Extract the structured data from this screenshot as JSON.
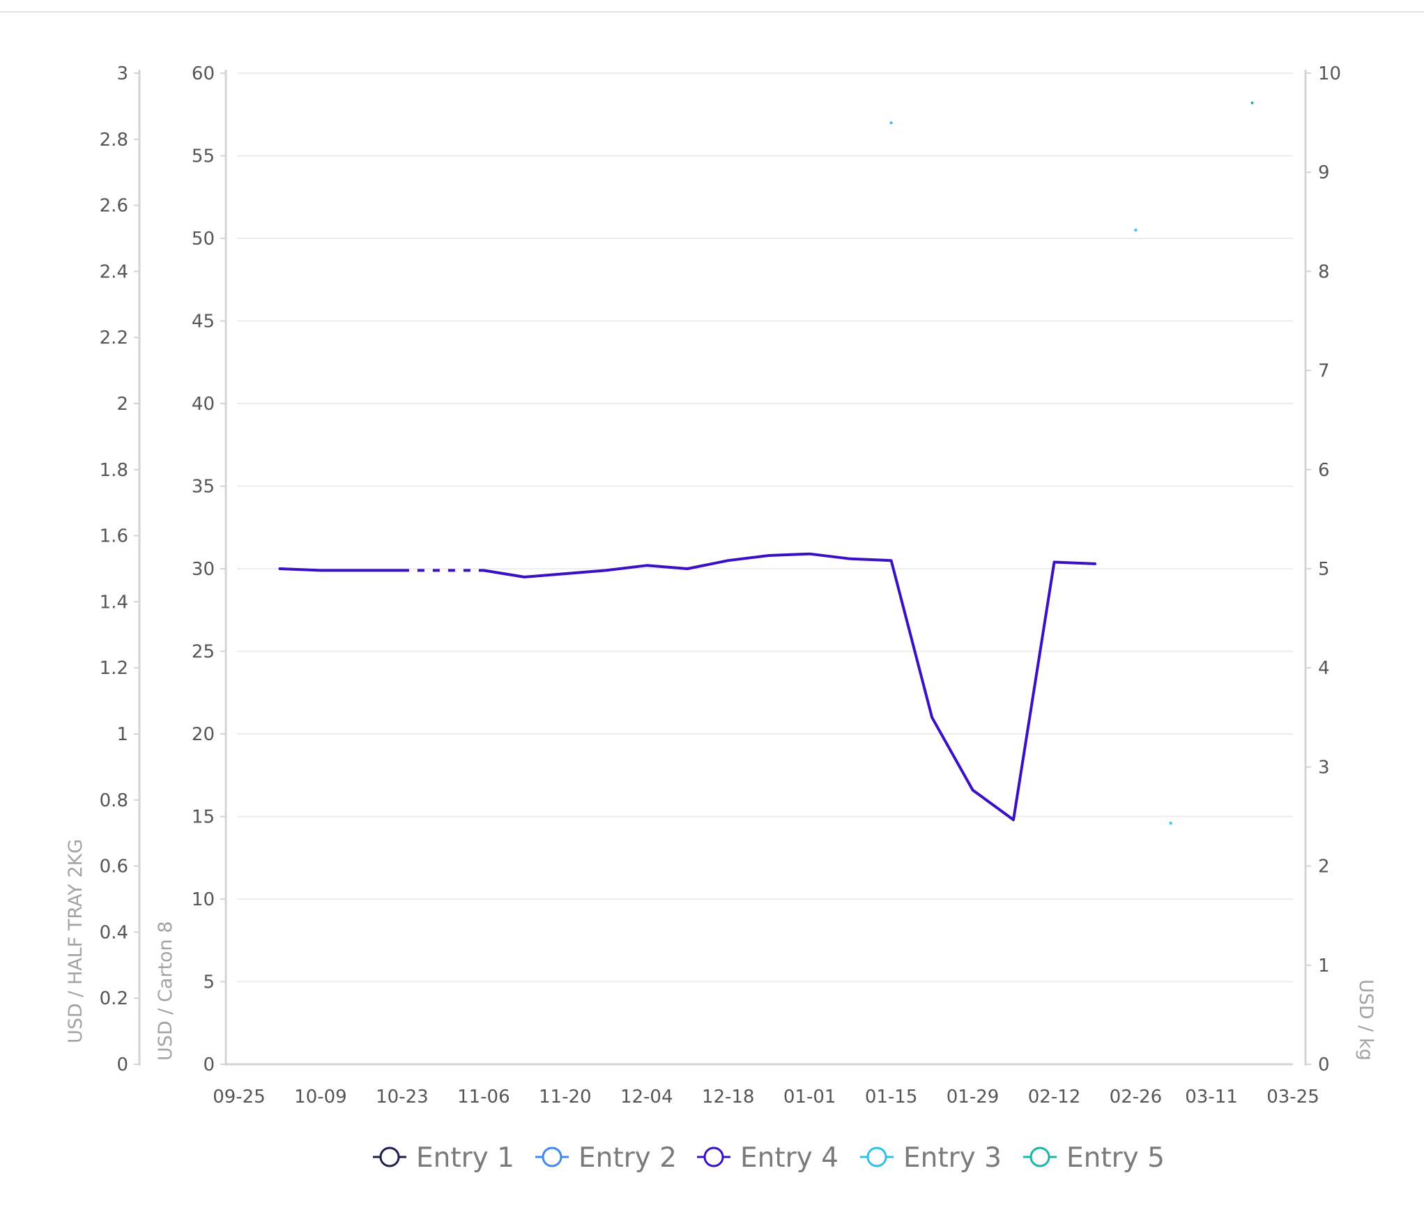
{
  "chart_data": {
    "type": "line",
    "title": "",
    "x_axis": {
      "tick_labels": [
        "09-25",
        "10-09",
        "10-23",
        "11-06",
        "11-20",
        "12-04",
        "12-18",
        "01-01",
        "01-15",
        "01-29",
        "02-12",
        "02-26",
        "03-11",
        "03-25"
      ]
    },
    "y_axes": {
      "left_outer": {
        "label": "USD / HALF TRAY 2KG",
        "range": [
          0,
          3
        ],
        "tick_labels": [
          "0",
          "0.2",
          "0.4",
          "0.6",
          "0.8",
          "1",
          "1.2",
          "1.4",
          "1.6",
          "1.8",
          "2",
          "2.2",
          "2.4",
          "2.6",
          "2.8",
          "3"
        ]
      },
      "left_inner": {
        "label": "USD / Carton 8",
        "range": [
          0,
          60
        ],
        "tick_labels": [
          "0",
          "5",
          "10",
          "15",
          "20",
          "25",
          "30",
          "35",
          "40",
          "45",
          "50",
          "55",
          "60"
        ]
      },
      "right": {
        "label": "USD / kg",
        "range": [
          0,
          10
        ],
        "tick_labels": [
          "0",
          "1",
          "2",
          "3",
          "4",
          "5",
          "6",
          "7",
          "8",
          "9",
          "10"
        ]
      }
    },
    "grid": true,
    "legend_position": "bottom",
    "legend": [
      {
        "label": "Entry 1",
        "color": "#1a1f4e"
      },
      {
        "label": "Entry 2",
        "color": "#3d8bef"
      },
      {
        "label": "Entry 4",
        "color": "#3a0fc6"
      },
      {
        "label": "Entry 3",
        "color": "#2ec0e8"
      },
      {
        "label": "Entry 5",
        "color": "#1ab5a8"
      }
    ],
    "series": [
      {
        "name": "Entry 4",
        "axis": "left_inner",
        "color": "#3a0fc6",
        "points": [
          [
            "10-02",
            30.0
          ],
          [
            "10-09",
            29.9
          ],
          [
            "10-16",
            29.9
          ],
          [
            "10-23",
            29.9
          ],
          [
            "10-30",
            29.9
          ],
          [
            "11-06",
            29.9
          ],
          [
            "11-13",
            29.5
          ],
          [
            "11-20",
            29.7
          ],
          [
            "11-27",
            29.9
          ],
          [
            "12-04",
            30.2
          ],
          [
            "12-11",
            30.0
          ],
          [
            "12-18",
            30.5
          ],
          [
            "12-25",
            30.8
          ],
          [
            "01-01",
            30.9
          ],
          [
            "01-08",
            30.6
          ],
          [
            "01-15",
            30.5
          ],
          [
            "01-22",
            21.0
          ],
          [
            "01-29",
            16.6
          ],
          [
            "02-05",
            14.8
          ],
          [
            "02-12",
            30.4
          ],
          [
            "02-19",
            30.3
          ]
        ],
        "dashed_segments": [
          [
            3,
            5
          ]
        ]
      },
      {
        "name": "Entry 3",
        "axis": "left_inner",
        "color": "#2ec0e8",
        "points": [
          [
            "01-15",
            57.0
          ],
          [
            "02-26",
            50.5
          ],
          [
            "03-04",
            14.6
          ]
        ]
      },
      {
        "name": "Entry 5",
        "axis": "right",
        "color": "#1ab5a8",
        "points": [
          [
            "03-18",
            9.7
          ]
        ]
      }
    ]
  }
}
